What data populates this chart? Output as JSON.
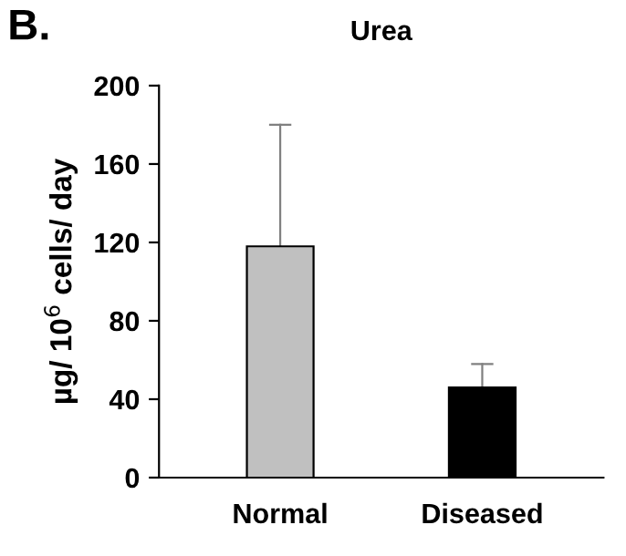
{
  "chart_data": {
    "type": "bar",
    "title": "Urea",
    "ylabel": "µg/ 10$^{6}$ cells/ day",
    "categories": [
      "Normal",
      "Diseased"
    ],
    "values": [
      118,
      46
    ],
    "colors": [
      "#c0c0c0",
      "#000000"
    ],
    "errors": [
      [
        118,
        180
      ],
      [
        46,
        58
      ]
    ],
    "ylim": [
      0,
      200
    ],
    "yticks": [
      0,
      40,
      80,
      120,
      160,
      200
    ],
    "grid": false,
    "legend": false,
    "annotations": [
      "B."
    ]
  }
}
